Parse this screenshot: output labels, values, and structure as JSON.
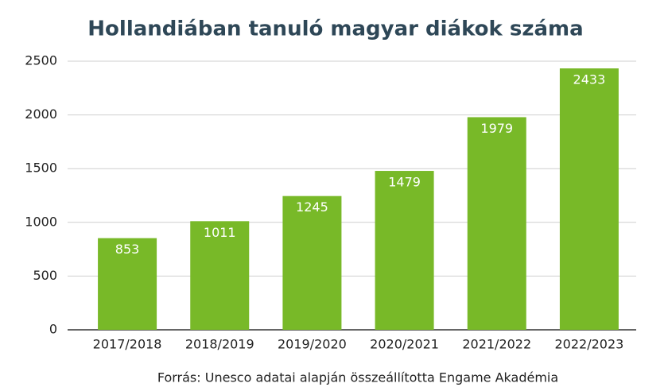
{
  "chart_data": {
    "type": "bar",
    "title": "Hollandiában tanuló magyar diákok száma",
    "categories": [
      "2017/2018",
      "2018/2019",
      "2019/2020",
      "2020/2021",
      "2021/2022",
      "2022/2023"
    ],
    "values": [
      853,
      1011,
      1245,
      1479,
      1979,
      2433
    ],
    "color": "#78b928",
    "ylim": [
      0,
      2500
    ],
    "yticks": [
      0,
      500,
      1000,
      1500,
      2000,
      2500
    ],
    "grid": true,
    "source": "Forrás: Unesco adatai alapján összeállította Engame Akadémia"
  }
}
